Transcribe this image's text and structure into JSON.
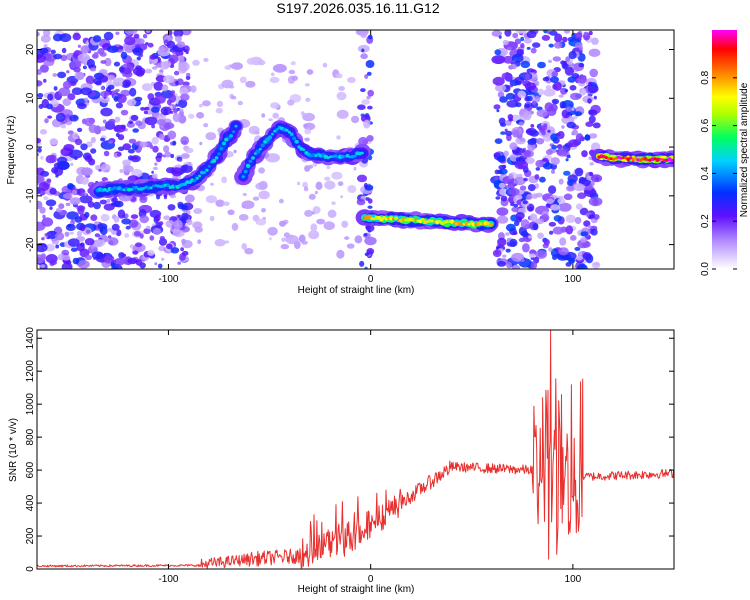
{
  "title": "S197.2026.035.16.11.G12",
  "chart_data": [
    {
      "type": "heatmap",
      "xlabel": "Height of straight line (km)",
      "ylabel": "Frequency (Hz)",
      "xlim": [
        -165,
        150
      ],
      "ylim": [
        -25,
        24
      ],
      "x_ticks": [
        -100,
        0,
        100
      ],
      "y_ticks": [
        -20,
        -10,
        0,
        10,
        20
      ],
      "colorbar": {
        "label": "Normalized spectral amplitude",
        "range": [
          0,
          1
        ],
        "ticks": [
          0.0,
          0.2,
          0.4,
          0.6,
          0.8
        ],
        "tick_labels": [
          "0.0",
          "0.2",
          "0.4",
          "0.6",
          "0.8"
        ],
        "colors": [
          "#ffffff",
          "#9c27ff",
          "#0000ff",
          "#00c8ff",
          "#00ff40",
          "#ffff00",
          "#ff8000",
          "#ff0000",
          "#ff00ff"
        ]
      },
      "noise_regions": [
        {
          "x": [
            -165,
            -90
          ],
          "y": [
            -25,
            24
          ],
          "level": 0.25
        },
        {
          "x": [
            -90,
            -5
          ],
          "y": [
            -22,
            18
          ],
          "level": 0.06
        },
        {
          "x": [
            -5,
            0
          ],
          "y": [
            -25,
            24
          ],
          "level": 0.3
        },
        {
          "x": [
            62,
            112
          ],
          "y": [
            -25,
            24
          ],
          "level": 0.28
        }
      ],
      "features": [
        {
          "name": "track-1",
          "x": [
            -135,
            -125,
            -115,
            -105,
            -95,
            -88,
            -82,
            -76,
            -72,
            -68,
            -66
          ],
          "y": [
            -9,
            -8.5,
            -8.5,
            -8,
            -8,
            -7,
            -5,
            -2,
            1,
            3,
            5
          ],
          "amp": 0.45
        },
        {
          "name": "track-2",
          "x": [
            -63,
            -58,
            -54,
            -50,
            -45,
            -40,
            -35,
            -30,
            -20,
            -10,
            -4
          ],
          "y": [
            -6,
            -2,
            0,
            2,
            4,
            3,
            0,
            -1.5,
            -2,
            -2,
            -1
          ],
          "amp": 0.45
        },
        {
          "name": "track-3",
          "x": [
            -3,
            10,
            20,
            30,
            40,
            50,
            60
          ],
          "y": [
            -14.5,
            -14.7,
            -15,
            -15.2,
            -15.5,
            -15.7,
            -15.8
          ],
          "amp": 0.75
        },
        {
          "name": "track-4",
          "x": [
            113,
            120,
            128,
            138,
            150
          ],
          "y": [
            -2,
            -2.3,
            -2.4,
            -2.5,
            -2.5
          ],
          "amp": 0.95
        }
      ]
    },
    {
      "type": "line",
      "xlabel": "Height of straight line (km)",
      "ylabel": "SNR (10 * v/v)",
      "xlim": [
        -165,
        150
      ],
      "ylim": [
        0,
        1450
      ],
      "x_ticks": [
        -100,
        0,
        100
      ],
      "y_ticks": [
        0,
        200,
        400,
        600,
        800,
        1000,
        1200,
        1400
      ],
      "color": "#e8302e",
      "segments": [
        {
          "x": [
            -165,
            -85
          ],
          "base": [
            18,
            22
          ],
          "noise": 12
        },
        {
          "x": [
            -85,
            -60
          ],
          "base": [
            25,
            60
          ],
          "noise": 70
        },
        {
          "x": [
            -60,
            -35
          ],
          "base": [
            60,
            80
          ],
          "noise": 90
        },
        {
          "x": [
            -35,
            -5
          ],
          "base": [
            80,
            220
          ],
          "noise": 220
        },
        {
          "x": [
            -5,
            15
          ],
          "base": [
            220,
            400
          ],
          "noise": 160
        },
        {
          "x": [
            15,
            40
          ],
          "base": [
            400,
            620
          ],
          "noise": 90
        },
        {
          "x": [
            40,
            80
          ],
          "base": [
            620,
            600
          ],
          "noise": 60
        },
        {
          "x": [
            80,
            105
          ],
          "base": [
            600,
            450
          ],
          "noise": 650
        },
        {
          "x": [
            105,
            150
          ],
          "base": [
            560,
            580
          ],
          "noise": 55
        }
      ],
      "peaks": [
        {
          "x": 89,
          "y": 1450
        },
        {
          "x": 85,
          "y": 1040
        },
        {
          "x": 93,
          "y": 1020
        },
        {
          "x": 104,
          "y": 680
        },
        {
          "x": 88,
          "y": 60
        },
        {
          "x": 92,
          "y": 90
        }
      ]
    }
  ]
}
